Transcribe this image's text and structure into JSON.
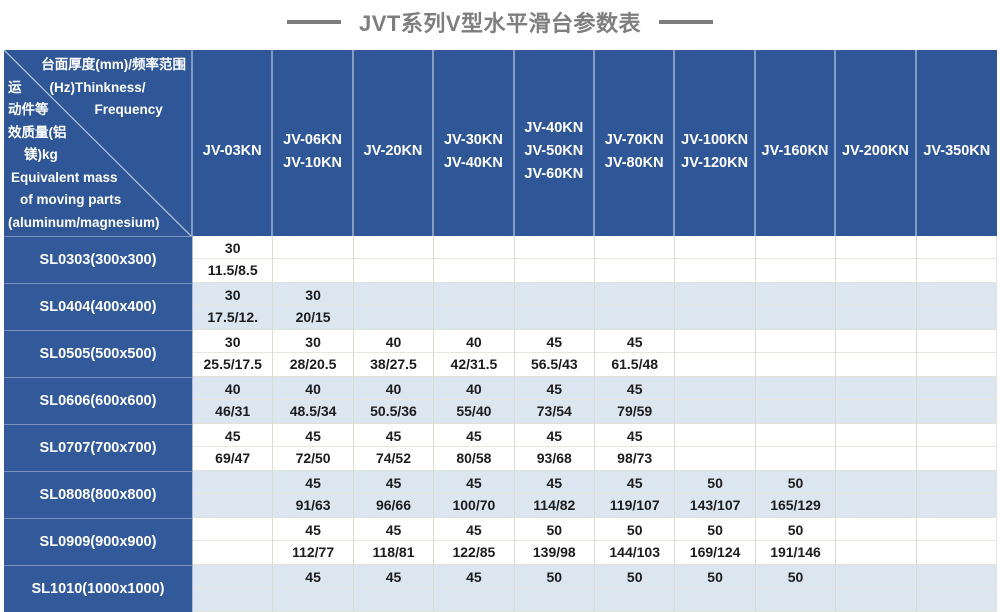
{
  "title": "JVT系列V型水平滑台参数表",
  "corner": {
    "line1": "台面厚度(mm)/频率范围",
    "line2a": "运",
    "line2b": "(Hz)Thinkness/",
    "line3a": "动件等",
    "line3b": "Frequency",
    "line4": "效质量(铝",
    "line5": "镁)kg",
    "line6": "Equivalent mass",
    "line7": "of moving parts",
    "line8": "(aluminum/magnesium)"
  },
  "columns": [
    {
      "lines": [
        "JV-03KN"
      ]
    },
    {
      "lines": [
        "JV-06KN",
        "JV-10KN"
      ]
    },
    {
      "lines": [
        "JV-20KN"
      ]
    },
    {
      "lines": [
        "JV-30KN",
        "JV-40KN"
      ]
    },
    {
      "lines": [
        "JV-40KN",
        "JV-50KN",
        "JV-60KN"
      ]
    },
    {
      "lines": [
        "JV-70KN",
        "JV-80KN"
      ]
    },
    {
      "lines": [
        "JV-100KN",
        "JV-120KN"
      ]
    },
    {
      "lines": [
        "JV-160KN"
      ]
    },
    {
      "lines": [
        "JV-200KN"
      ]
    },
    {
      "lines": [
        "JV-350KN"
      ]
    }
  ],
  "rows": [
    {
      "label": "SL0303(300x300)",
      "cells": [
        {
          "t": "30",
          "f": "11.5/8.5"
        },
        null,
        null,
        null,
        null,
        null,
        null,
        null,
        null,
        null
      ]
    },
    {
      "label": "SL0404(400x400)",
      "cells": [
        {
          "t": "30",
          "f": "17.5/12."
        },
        {
          "t": "30",
          "f": "20/15"
        },
        null,
        null,
        null,
        null,
        null,
        null,
        null,
        null
      ]
    },
    {
      "label": "SL0505(500x500)",
      "cells": [
        {
          "t": "30",
          "f": "25.5/17.5"
        },
        {
          "t": "30",
          "f": "28/20.5"
        },
        {
          "t": "40",
          "f": "38/27.5"
        },
        {
          "t": "40",
          "f": "42/31.5"
        },
        {
          "t": "45",
          "f": "56.5/43"
        },
        {
          "t": "45",
          "f": "61.5/48"
        },
        null,
        null,
        null,
        null
      ]
    },
    {
      "label": "SL0606(600x600)",
      "cells": [
        {
          "t": "40",
          "f": "46/31"
        },
        {
          "t": "40",
          "f": "48.5/34"
        },
        {
          "t": "40",
          "f": "50.5/36"
        },
        {
          "t": "40",
          "f": "55/40"
        },
        {
          "t": "45",
          "f": "73/54"
        },
        {
          "t": "45",
          "f": "79/59"
        },
        null,
        null,
        null,
        null
      ]
    },
    {
      "label": "SL0707(700x700)",
      "cells": [
        {
          "t": "45",
          "f": "69/47"
        },
        {
          "t": "45",
          "f": "72/50"
        },
        {
          "t": "45",
          "f": "74/52"
        },
        {
          "t": "45",
          "f": "80/58"
        },
        {
          "t": "45",
          "f": "93/68"
        },
        {
          "t": "45",
          "f": "98/73"
        },
        null,
        null,
        null,
        null
      ]
    },
    {
      "label": "SL0808(800x800)",
      "cells": [
        null,
        {
          "t": "45",
          "f": "91/63"
        },
        {
          "t": "45",
          "f": "96/66"
        },
        {
          "t": "45",
          "f": "100/70"
        },
        {
          "t": "45",
          "f": "114/82"
        },
        {
          "t": "45",
          "f": "119/107"
        },
        {
          "t": "50",
          "f": "143/107"
        },
        {
          "t": "50",
          "f": "165/129"
        },
        null,
        null
      ]
    },
    {
      "label": "SL0909(900x900)",
      "cells": [
        null,
        {
          "t": "45",
          "f": "112/77"
        },
        {
          "t": "45",
          "f": "118/81"
        },
        {
          "t": "45",
          "f": "122/85"
        },
        {
          "t": "50",
          "f": "139/98"
        },
        {
          "t": "50",
          "f": "144/103"
        },
        {
          "t": "50",
          "f": "169/124"
        },
        {
          "t": "50",
          "f": "191/146"
        },
        null,
        null
      ]
    },
    {
      "label": "SL1010(1000x1000)",
      "cells": [
        null,
        {
          "t": "45",
          "f": ""
        },
        {
          "t": "45",
          "f": ""
        },
        {
          "t": "45",
          "f": ""
        },
        {
          "t": "50",
          "f": ""
        },
        {
          "t": "50",
          "f": ""
        },
        {
          "t": "50",
          "f": ""
        },
        {
          "t": "50",
          "f": ""
        },
        null,
        null
      ]
    }
  ],
  "colors": {
    "header_blue": "#2f5696",
    "label_blue": "#32599a",
    "band_blue": "#dce6f1",
    "band_white": "#ffffff",
    "title_gray": "#7e7e7e",
    "grid_line": "#e2e2d9"
  }
}
